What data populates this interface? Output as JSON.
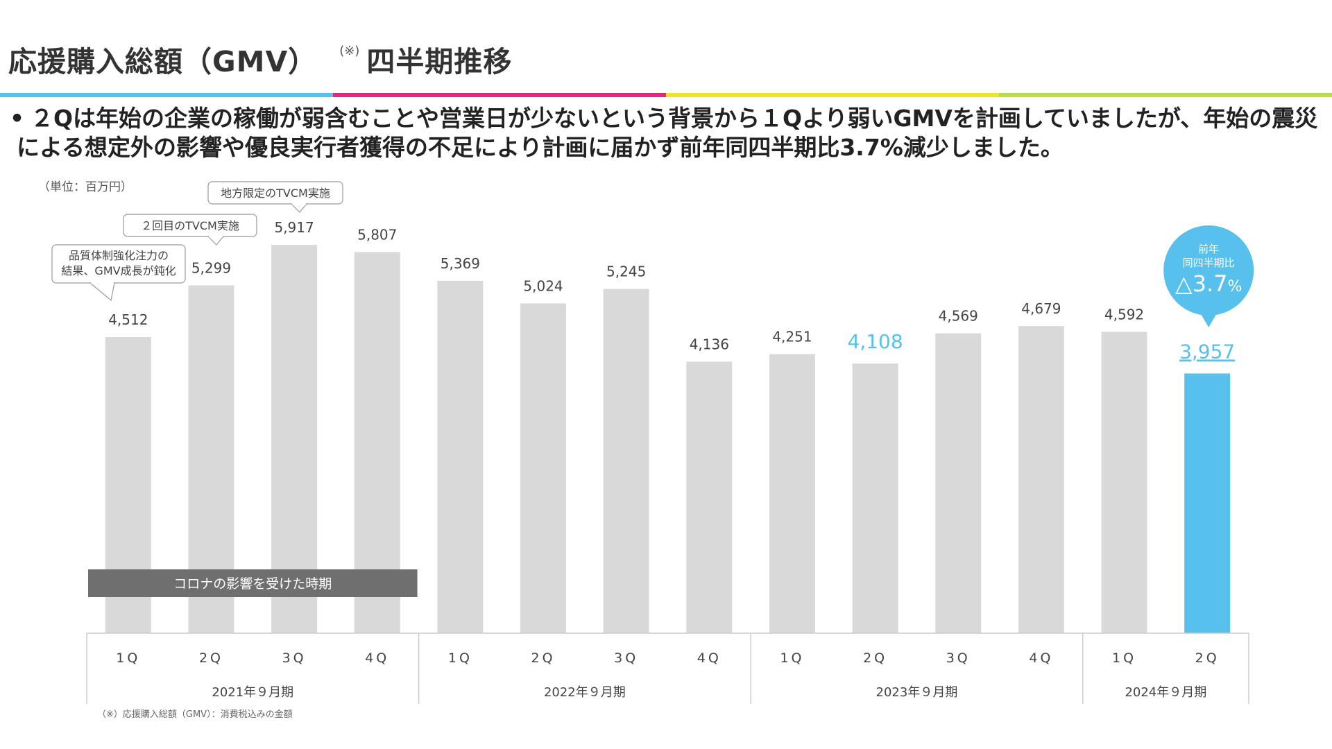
{
  "header": {
    "title": "応援購入総額（GMV）",
    "title_note": "(※)",
    "subtitle": "四半期推移",
    "color_bar": [
      "#58c0ec",
      "#e5257a",
      "#f3df2e",
      "#b6dc4a"
    ]
  },
  "summary": {
    "bullet": "•",
    "text": "２Qは年始の企業の稼働が弱含むことや営業日が少ないという背景から１Qより弱いGMVを計画していましたが、年始の震災による想定外の影響や優良実行者獲得の不足により計画に届かず前年同四半期比3.7%減少しました。"
  },
  "chart_data": {
    "type": "bar",
    "unit_label": "（単位：百万円）",
    "categories": [
      "1Q",
      "2Q",
      "3Q",
      "4Q",
      "1Q",
      "2Q",
      "3Q",
      "4Q",
      "1Q",
      "2Q",
      "3Q",
      "4Q",
      "1Q",
      "2Q"
    ],
    "values": [
      4512,
      5299,
      5917,
      5807,
      5369,
      5024,
      5245,
      4136,
      4251,
      4108,
      4569,
      4679,
      4592,
      3957
    ],
    "value_labels": [
      "4,512",
      "5,299",
      "5,917",
      "5,807",
      "5,369",
      "5,024",
      "5,245",
      "4,136",
      "4,251",
      "4,108",
      "4,569",
      "4,679",
      "4,592",
      "3,957"
    ],
    "highlight_label_index": 9,
    "highlight_bar_index": 13,
    "fiscal_years": [
      {
        "label": "2021年９月期",
        "bars": 4
      },
      {
        "label": "2022年９月期",
        "bars": 4
      },
      {
        "label": "2023年９月期",
        "bars": 4
      },
      {
        "label": "2024年９月期",
        "bars": 2
      }
    ],
    "ylim": [
      0,
      6000
    ],
    "colors": {
      "bar": "#d9d9d9",
      "highlight": "#58c0ec",
      "band": "#6f6f6f",
      "axis": "#cccccc"
    },
    "callouts": [
      {
        "bar_index": 0,
        "lines": [
          "品質体制強化注力の",
          "結果、GMV成長が鈍化"
        ]
      },
      {
        "bar_index": 1,
        "lines": [
          "２回目のTVCM実施"
        ]
      },
      {
        "bar_index": 2,
        "lines": [
          "地方限定のTVCM実施"
        ]
      }
    ],
    "covid_band": {
      "label": "コロナの影響を受けた時期",
      "from_index": 0,
      "to_index": 3
    },
    "badge": {
      "bar_index": 13,
      "line1": "前年",
      "line2": "同四半期比",
      "value": "△3.7",
      "unit": "%"
    },
    "footnote": "（※）応援購入総額（GMV）：消費税込みの金額"
  }
}
